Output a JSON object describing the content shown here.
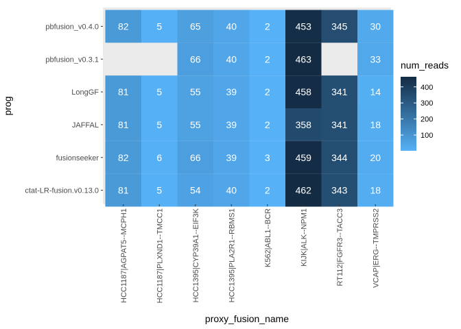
{
  "chart_data": {
    "type": "heatmap",
    "xlabel": "proxy_fusion_name",
    "ylabel": "prog",
    "x_categories": [
      "HCC1187|AGPAT5--MCPH1",
      "HCC1187|PLXND1--TMCC1",
      "HCC1395|CYP39A1--EIF3K",
      "HCC1395|PLA2R1--RBMS1",
      "K562|ABL1--BCR",
      "KIJK|ALK--NPM1",
      "RT112|FGFR3--TACC3",
      "VCAP|ERG--TMPRSS2"
    ],
    "y_categories": [
      "pbfusion_v0.4.0",
      "pbfusion_v0.3.1",
      "LongGF",
      "JAFFAL",
      "fusionseeker",
      "ctat-LR-fusion.v0.13.0"
    ],
    "values": [
      [
        82,
        5,
        65,
        40,
        2,
        453,
        345,
        30
      ],
      [
        null,
        null,
        66,
        40,
        2,
        463,
        null,
        33
      ],
      [
        81,
        5,
        55,
        39,
        2,
        458,
        341,
        14
      ],
      [
        81,
        5,
        55,
        39,
        2,
        358,
        341,
        18
      ],
      [
        82,
        6,
        66,
        39,
        3,
        459,
        344,
        20
      ],
      [
        81,
        5,
        54,
        40,
        2,
        462,
        343,
        18
      ]
    ],
    "legend": {
      "title": "num_reads",
      "ticks": [
        100,
        200,
        300,
        400
      ],
      "tick_labels": [
        "100",
        "200",
        "300",
        "400"
      ],
      "range": [
        2,
        463
      ],
      "low_color": "#56B1F7",
      "high_color": "#132B43",
      "placement": "right"
    },
    "panel_background": "#EBEBEB",
    "grid": false
  }
}
